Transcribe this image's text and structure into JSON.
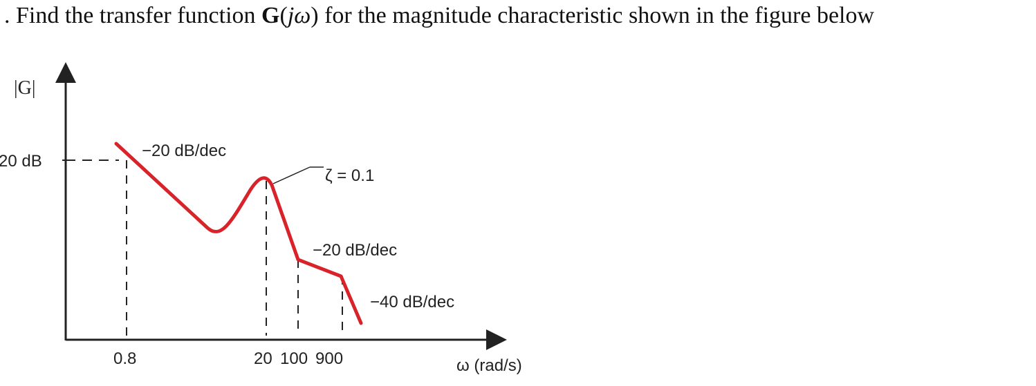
{
  "question": {
    "prefix": ". Find the transfer function ",
    "func_bold": "G",
    "func_open": "(",
    "func_arg": "jω",
    "func_close": ")",
    "suffix": " for the magnitude characteristic shown in the figure below"
  },
  "diagram": {
    "y_axis_label": "|G|",
    "y_tick_label": "20 dB",
    "x_axis_label": "ω (rad/s)",
    "x_tick_labels": [
      "0.8",
      "20",
      "100",
      "900"
    ],
    "annotations": {
      "slope_1": "−20 dB/dec",
      "damping": "ζ = 0.1",
      "slope_2": "−20 dB/dec",
      "slope_3": "−40 dB/dec"
    },
    "colors": {
      "curve": "#d8232a",
      "axes": "#222222"
    }
  }
}
